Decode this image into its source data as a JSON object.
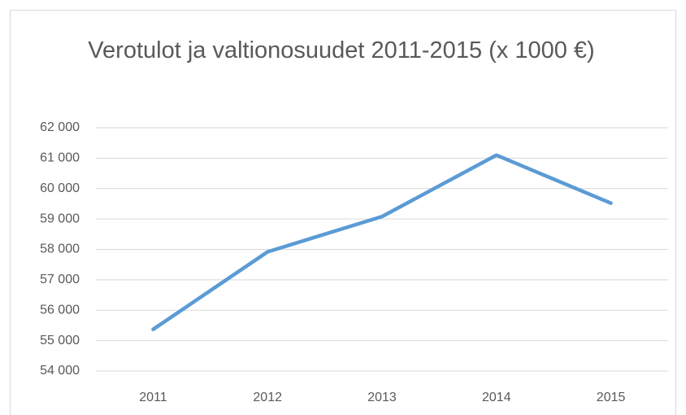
{
  "chart_data": {
    "type": "line",
    "title": "Verotulot ja valtionosuudet 2011-2015 (x 1000 €)",
    "categories": [
      "2011",
      "2012",
      "2013",
      "2014",
      "2015"
    ],
    "values": [
      55370,
      57920,
      59080,
      61100,
      59520
    ],
    "color": "#5b9bd5",
    "ylim": [
      54000,
      62000
    ],
    "yticks": [
      {
        "value": 54000,
        "label": "54 000"
      },
      {
        "value": 55000,
        "label": "55 000"
      },
      {
        "value": 56000,
        "label": "56 000"
      },
      {
        "value": 57000,
        "label": "57 000"
      },
      {
        "value": 58000,
        "label": "58 000"
      },
      {
        "value": 59000,
        "label": "59 000"
      },
      {
        "value": 60000,
        "label": "60 000"
      },
      {
        "value": 61000,
        "label": "61 000"
      },
      {
        "value": 62000,
        "label": "62 000"
      }
    ],
    "grid": true
  }
}
